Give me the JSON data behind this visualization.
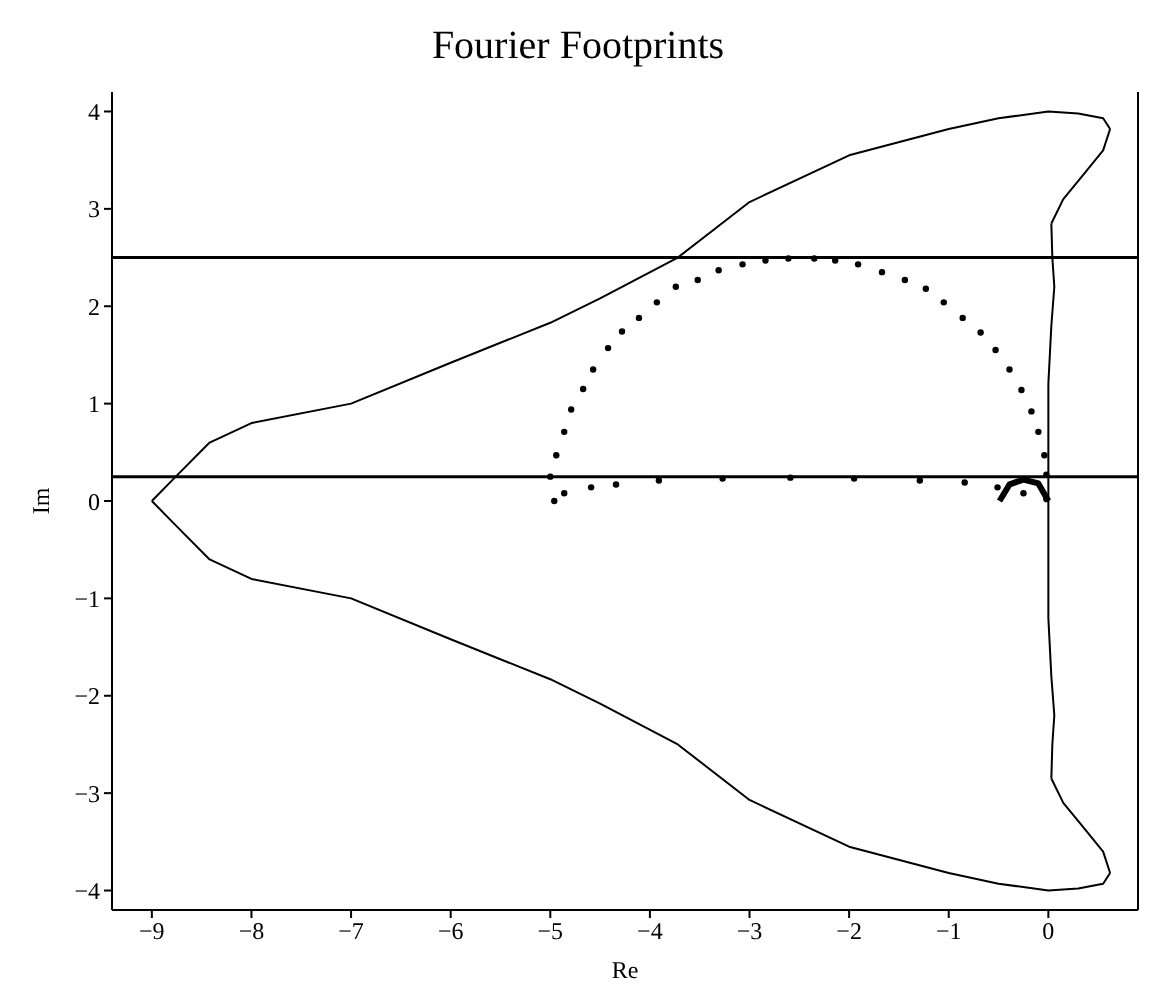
{
  "chart_data": {
    "type": "line",
    "title": "Fourier Footprints",
    "xlabel": "Re",
    "ylabel": "Im",
    "xlim": [
      -9.4,
      0.9
    ],
    "xticks": [
      -9,
      -8,
      -7,
      -6,
      -5,
      -4,
      -3,
      -2,
      -1,
      0
    ],
    "ylim": [
      -4.2,
      4.2
    ],
    "yticks": [
      -4,
      -3,
      -2,
      -1,
      0,
      1,
      2,
      3,
      4
    ],
    "grid": false,
    "ref_lines": [
      {
        "axis": "y",
        "value": 2.5,
        "color": "#000000"
      },
      {
        "axis": "y",
        "value": 0.25,
        "color": "#000000"
      }
    ],
    "series": [
      {
        "color": "#000000",
        "marker": "none",
        "x": [
          -9,
          -8.77,
          -8.42,
          -8,
          -7,
          -6,
          -5,
          -4.5,
          -3.72,
          -3,
          -2,
          -1,
          -0.5,
          0,
          0.3,
          0.55,
          0.62
        ],
        "values": [
          0,
          0.24,
          0.6,
          0.8,
          1.0,
          1.42,
          1.83,
          2.08,
          2.5,
          3.07,
          3.55,
          3.82,
          3.93,
          4.0,
          3.98,
          3.93,
          3.82
        ]
      },
      {
        "color": "#000000",
        "marker": "none",
        "x": [
          0.62,
          0.55,
          0.35,
          0.15,
          0.03
        ],
        "values": [
          3.82,
          3.6,
          3.35,
          3.1,
          2.85
        ]
      },
      {
        "color": "#000000",
        "marker": "none",
        "x": [
          0.03,
          0.04,
          0.06,
          0.03,
          0,
          0,
          0,
          0,
          0,
          0.03,
          0.06,
          0.04,
          0.03
        ],
        "values": [
          2.85,
          2.5,
          2.2,
          1.8,
          1.2,
          0.6,
          0,
          -0.6,
          -1.2,
          -1.8,
          -2.2,
          -2.5,
          -2.85
        ]
      },
      {
        "color": "#000000",
        "marker": "none",
        "x": [
          0.03,
          0.15,
          0.35,
          0.55,
          0.62
        ],
        "values": [
          -2.85,
          -3.1,
          -3.35,
          -3.6,
          -3.82
        ]
      },
      {
        "color": "#000000",
        "marker": "none",
        "x": [
          0.62,
          0.55,
          0.3,
          0,
          -0.5,
          -1,
          -2,
          -3,
          -3.72,
          -4.5,
          -5,
          -6,
          -7,
          -8,
          -8.42,
          -8.77,
          -9
        ],
        "values": [
          -3.82,
          -3.93,
          -3.98,
          -4.0,
          -3.93,
          -3.82,
          -3.55,
          -3.07,
          -2.5,
          -2.08,
          -1.83,
          -1.42,
          -1.0,
          -0.8,
          -0.6,
          -0.24,
          0
        ]
      },
      {
        "type": "scatter",
        "color": "#000000",
        "marker": "circle",
        "x": [
          -5,
          -4.94,
          -4.86,
          -4.79,
          -4.67,
          -4.57,
          -4.42,
          -4.28,
          -4.11,
          -3.93,
          -3.74,
          -3.52,
          -3.31,
          -3.07,
          -2.84,
          -2.61,
          -2.35,
          -2.14,
          -1.91,
          -1.67,
          -1.44,
          -1.23,
          -1.05,
          -0.86,
          -0.68,
          -0.53,
          -0.39,
          -0.27,
          -0.17,
          -0.1,
          -0.04,
          -0.02
        ],
        "values": [
          0.25,
          0.47,
          0.71,
          0.94,
          1.15,
          1.35,
          1.57,
          1.74,
          1.88,
          2.04,
          2.2,
          2.27,
          2.37,
          2.43,
          2.47,
          2.49,
          2.49,
          2.47,
          2.43,
          2.35,
          2.27,
          2.18,
          2.04,
          1.88,
          1.73,
          1.55,
          1.35,
          1.14,
          0.92,
          0.71,
          0.47,
          0.27
        ]
      },
      {
        "type": "scatter",
        "color": "#000000",
        "marker": "circle",
        "x": [
          -4.96,
          -4.86,
          -4.59,
          -4.34,
          -3.91,
          -3.27,
          -2.59,
          -1.95,
          -1.29,
          -0.84,
          -0.51,
          -0.25,
          -0.02
        ],
        "values": [
          0,
          0.08,
          0.14,
          0.17,
          0.21,
          0.23,
          0.24,
          0.23,
          0.21,
          0.19,
          0.14,
          0.08,
          0.02
        ]
      },
      {
        "color": "#000000",
        "marker": "none",
        "x": [
          -0.49,
          -0.39,
          -0.25,
          -0.1,
          0
        ],
        "values": [
          0,
          0.17,
          0.22,
          0.18,
          0
        ]
      }
    ]
  }
}
